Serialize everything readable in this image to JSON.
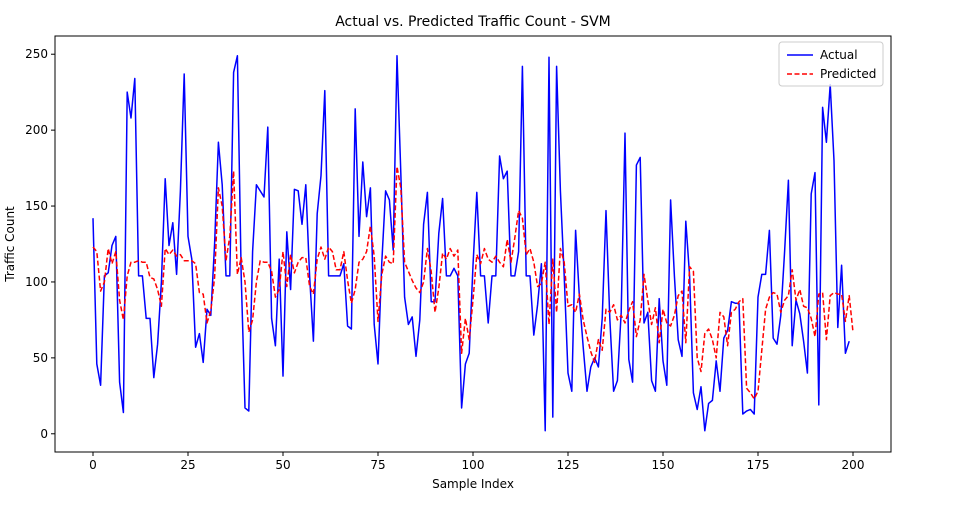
{
  "chart_data": {
    "type": "line",
    "title": "Actual vs. Predicted Traffic Count - SVM",
    "xlabel": "Sample Index",
    "ylabel": "Traffic Count",
    "xlim": [
      -10,
      210
    ],
    "ylim": [
      -12,
      262
    ],
    "xticks": [
      0,
      25,
      50,
      75,
      100,
      125,
      150,
      175,
      200
    ],
    "yticks": [
      0,
      50,
      100,
      150,
      200,
      250
    ],
    "grid": false,
    "legend_position": "top-right",
    "series": [
      {
        "name": "Actual",
        "color": "#0000ff",
        "style": "solid",
        "values": [
          142,
          46,
          32,
          104,
          106,
          124,
          130,
          34,
          14,
          225,
          208,
          234,
          104,
          104,
          76,
          76,
          37,
          59,
          100,
          168,
          124,
          139,
          105,
          160,
          237,
          130,
          115,
          57,
          66,
          47,
          82,
          78,
          125,
          192,
          164,
          104,
          104,
          238,
          249,
          104,
          17,
          15,
          120,
          164,
          160,
          156,
          202,
          76,
          58,
          115,
          38,
          133,
          95,
          161,
          160,
          138,
          164,
          104,
          61,
          145,
          170,
          226,
          104,
          104,
          104,
          104,
          112,
          71,
          69,
          214,
          130,
          179,
          143,
          162,
          72,
          46,
          113,
          160,
          154,
          121,
          249,
          172,
          90,
          72,
          77,
          51,
          75,
          138,
          159,
          87,
          87,
          132,
          155,
          104,
          104,
          109,
          104,
          17,
          46,
          53,
          111,
          159,
          104,
          104,
          73,
          104,
          104,
          183,
          168,
          173,
          104,
          104,
          120,
          242,
          104,
          104,
          65,
          85,
          112,
          2,
          248,
          11,
          242,
          160,
          104,
          40,
          28,
          134,
          90,
          57,
          28,
          44,
          50,
          44,
          76,
          147,
          76,
          28,
          35,
          80,
          198,
          49,
          34,
          177,
          182,
          73,
          80,
          35,
          28,
          89,
          48,
          32,
          154,
          104,
          62,
          51,
          140,
          104,
          27,
          16,
          31,
          2,
          20,
          22,
          48,
          28,
          63,
          68,
          87,
          86,
          86,
          13,
          15,
          16,
          13,
          90,
          105,
          105,
          134,
          63,
          59,
          78,
          120,
          167,
          58,
          88,
          79,
          61,
          40,
          158,
          172,
          19,
          215,
          192,
          230,
          180,
          70,
          111,
          53,
          61
        ]
      },
      {
        "name": "Predicted",
        "color": "#ff0000",
        "style": "dashed",
        "values": [
          123,
          120,
          94,
          100,
          122,
          112,
          120,
          88,
          75,
          104,
          113,
          113,
          114,
          113,
          113,
          103,
          102,
          95,
          84,
          122,
          118,
          121,
          117,
          118,
          114,
          114,
          114,
          112,
          93,
          92,
          73,
          81,
          103,
          162,
          150,
          114,
          130,
          173,
          105,
          116,
          100,
          67,
          75,
          100,
          114,
          113,
          113,
          107,
          90,
          95,
          120,
          97,
          118,
          106,
          113,
          116,
          116,
          97,
          92,
          115,
          123,
          115,
          123,
          120,
          108,
          108,
          120,
          101,
          86,
          95,
          113,
          115,
          120,
          137,
          117,
          74,
          105,
          117,
          113,
          112,
          176,
          162,
          113,
          107,
          101,
          96,
          93,
          100,
          122,
          107,
          80,
          96,
          119,
          115,
          122,
          117,
          121,
          53,
          76,
          62,
          88,
          118,
          112,
          122,
          115,
          113,
          117,
          113,
          110,
          128,
          113,
          129,
          147,
          142,
          118,
          122,
          113,
          97,
          99,
          113,
          72,
          115,
          80,
          122,
          113,
          84,
          85,
          80,
          92,
          75,
          64,
          54,
          47,
          62,
          55,
          82,
          80,
          85,
          75,
          78,
          73,
          81,
          87,
          64,
          75,
          105,
          88,
          72,
          83,
          60,
          82,
          73,
          71,
          78,
          91,
          94,
          60,
          110,
          107,
          50,
          41,
          66,
          69,
          62,
          50,
          80,
          77,
          58,
          80,
          82,
          87,
          89,
          30,
          27,
          23,
          28,
          55,
          82,
          90,
          93,
          92,
          80,
          88,
          91,
          108,
          88,
          95,
          84,
          83,
          76,
          64,
          92,
          93,
          62,
          91,
          93,
          92,
          92,
          74,
          91,
          67
        ]
      }
    ]
  }
}
